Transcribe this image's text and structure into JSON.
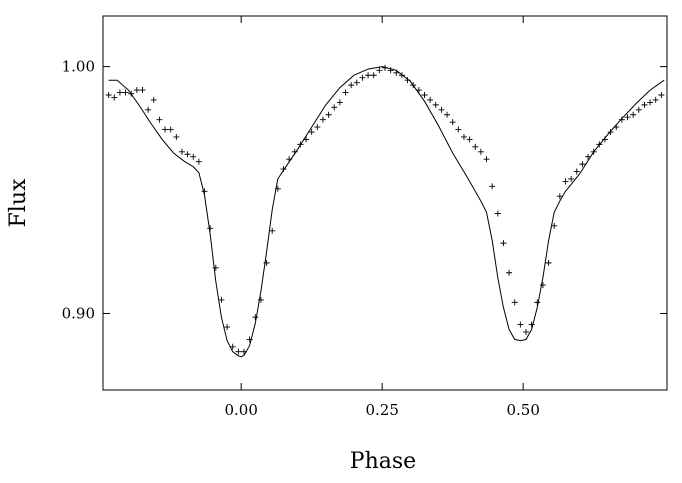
{
  "chart_data": {
    "type": "line",
    "title": "",
    "xlabel": "Phase",
    "ylabel": "Flux",
    "xlim": [
      -0.245,
      0.755
    ],
    "ylim": [
      0.869,
      1.0205
    ],
    "grid": false,
    "x_ticks": [
      {
        "value": 0.0,
        "label": "0.00"
      },
      {
        "value": 0.25,
        "label": "0.25"
      },
      {
        "value": 0.5,
        "label": "0.50"
      }
    ],
    "y_ticks": [
      {
        "value": 0.9,
        "label": "0.90"
      },
      {
        "value": 1.0,
        "label": "1.00"
      }
    ],
    "series": [
      {
        "kind": "model-curve",
        "style": "line",
        "x": [
          -0.235,
          -0.22,
          -0.2,
          -0.18,
          -0.16,
          -0.14,
          -0.12,
          -0.1,
          -0.085,
          -0.075,
          -0.065,
          -0.055,
          -0.045,
          -0.035,
          -0.025,
          -0.015,
          -0.005,
          0.0,
          0.005,
          0.015,
          0.025,
          0.035,
          0.045,
          0.055,
          0.065,
          0.075,
          0.1,
          0.125,
          0.15,
          0.175,
          0.2,
          0.225,
          0.25,
          0.275,
          0.3,
          0.325,
          0.35,
          0.375,
          0.4,
          0.425,
          0.435,
          0.445,
          0.455,
          0.465,
          0.475,
          0.485,
          0.495,
          0.5,
          0.505,
          0.515,
          0.525,
          0.535,
          0.545,
          0.555,
          0.565,
          0.575,
          0.6,
          0.625,
          0.65,
          0.675,
          0.7,
          0.725,
          0.75
        ],
        "y": [
          0.9945,
          0.9945,
          0.9905,
          0.984,
          0.977,
          0.9705,
          0.965,
          0.9615,
          0.9595,
          0.957,
          0.948,
          0.932,
          0.913,
          0.8985,
          0.889,
          0.8845,
          0.8828,
          0.8825,
          0.883,
          0.887,
          0.896,
          0.909,
          0.925,
          0.942,
          0.9545,
          0.958,
          0.9665,
          0.9755,
          0.9845,
          0.9915,
          0.9965,
          0.999,
          1.0,
          0.9985,
          0.994,
          0.986,
          0.976,
          0.965,
          0.9555,
          0.9455,
          0.941,
          0.9295,
          0.9145,
          0.9025,
          0.8935,
          0.8895,
          0.889,
          0.8892,
          0.8895,
          0.8935,
          0.9025,
          0.9145,
          0.9295,
          0.941,
          0.9455,
          0.9495,
          0.9565,
          0.9655,
          0.9725,
          0.979,
          0.985,
          0.9905,
          0.9945
        ]
      },
      {
        "kind": "observations",
        "style": "points",
        "x": [
          -0.235,
          -0.225,
          -0.215,
          -0.205,
          -0.195,
          -0.185,
          -0.175,
          -0.165,
          -0.155,
          -0.145,
          -0.135,
          -0.125,
          -0.115,
          -0.105,
          -0.095,
          -0.085,
          -0.075,
          -0.065,
          -0.055,
          -0.045,
          -0.035,
          -0.025,
          -0.015,
          -0.005,
          0.005,
          0.015,
          0.025,
          0.035,
          0.045,
          0.055,
          0.065,
          0.075,
          0.085,
          0.095,
          0.105,
          0.115,
          0.125,
          0.135,
          0.145,
          0.155,
          0.165,
          0.175,
          0.185,
          0.195,
          0.205,
          0.215,
          0.225,
          0.235,
          0.245,
          0.255,
          0.265,
          0.275,
          0.285,
          0.295,
          0.305,
          0.315,
          0.325,
          0.335,
          0.345,
          0.355,
          0.365,
          0.375,
          0.385,
          0.395,
          0.405,
          0.415,
          0.425,
          0.435,
          0.445,
          0.455,
          0.465,
          0.475,
          0.485,
          0.495,
          0.505,
          0.515,
          0.525,
          0.535,
          0.545,
          0.555,
          0.565,
          0.575,
          0.585,
          0.595,
          0.605,
          0.615,
          0.625,
          0.635,
          0.645,
          0.655,
          0.665,
          0.675,
          0.685,
          0.695,
          0.705,
          0.715,
          0.725,
          0.735,
          0.745
        ],
        "y": [
          0.9885,
          0.9875,
          0.9895,
          0.9895,
          0.989,
          0.9905,
          0.9905,
          0.9825,
          0.9865,
          0.9785,
          0.9745,
          0.9745,
          0.9715,
          0.9655,
          0.9645,
          0.9635,
          0.9615,
          0.9495,
          0.9345,
          0.9185,
          0.9055,
          0.8945,
          0.8865,
          0.8845,
          0.8845,
          0.8895,
          0.8985,
          0.9055,
          0.9205,
          0.9335,
          0.9505,
          0.9585,
          0.9625,
          0.9655,
          0.9685,
          0.9705,
          0.9735,
          0.9755,
          0.9785,
          0.9805,
          0.9835,
          0.9855,
          0.9895,
          0.9925,
          0.9935,
          0.9955,
          0.9965,
          0.9965,
          0.9985,
          0.9995,
          0.9985,
          0.9975,
          0.9965,
          0.9945,
          0.9925,
          0.9905,
          0.9885,
          0.9865,
          0.9845,
          0.9825,
          0.9805,
          0.9775,
          0.9745,
          0.9715,
          0.9705,
          0.9675,
          0.9655,
          0.9625,
          0.9515,
          0.9405,
          0.9285,
          0.9165,
          0.9045,
          0.8955,
          0.8925,
          0.8955,
          0.9045,
          0.9115,
          0.9205,
          0.9355,
          0.9475,
          0.9535,
          0.9545,
          0.9575,
          0.9605,
          0.9635,
          0.9655,
          0.9685,
          0.9705,
          0.9735,
          0.9755,
          0.9785,
          0.9795,
          0.9805,
          0.9825,
          0.9845,
          0.9855,
          0.9865,
          0.9885
        ]
      }
    ]
  }
}
